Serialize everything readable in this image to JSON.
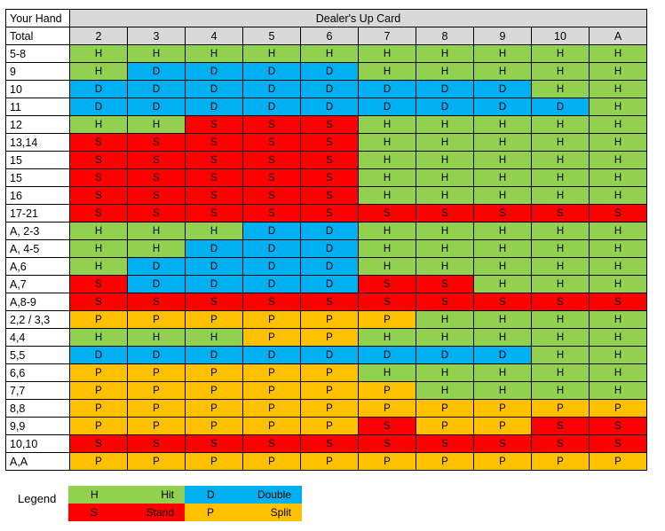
{
  "header": {
    "your_hand": "Your Hand",
    "total": "Total",
    "dealer_up_card": "Dealer's Up Card",
    "columns": [
      "2",
      "3",
      "4",
      "5",
      "6",
      "7",
      "8",
      "9",
      "10",
      "A"
    ]
  },
  "rows": [
    {
      "hand": "5-8",
      "cells": [
        "H",
        "H",
        "H",
        "H",
        "H",
        "H",
        "H",
        "H",
        "H",
        "H"
      ]
    },
    {
      "hand": "9",
      "cells": [
        "H",
        "D",
        "D",
        "D",
        "D",
        "H",
        "H",
        "H",
        "H",
        "H"
      ]
    },
    {
      "hand": "10",
      "cells": [
        "D",
        "D",
        "D",
        "D",
        "D",
        "D",
        "D",
        "D",
        "H",
        "H"
      ]
    },
    {
      "hand": "11",
      "cells": [
        "D",
        "D",
        "D",
        "D",
        "D",
        "D",
        "D",
        "D",
        "D",
        "H"
      ]
    },
    {
      "hand": "12",
      "cells": [
        "H",
        "H",
        "S",
        "S",
        "S",
        "H",
        "H",
        "H",
        "H",
        "H"
      ]
    },
    {
      "hand": "13,14",
      "cells": [
        "S",
        "S",
        "S",
        "S",
        "S",
        "H",
        "H",
        "H",
        "H",
        "H"
      ]
    },
    {
      "hand": "15",
      "cells": [
        "S",
        "S",
        "S",
        "S",
        "S",
        "H",
        "H",
        "H",
        "H",
        "H"
      ]
    },
    {
      "hand": "15",
      "cells": [
        "S",
        "S",
        "S",
        "S",
        "S",
        "H",
        "H",
        "H",
        "H",
        "H"
      ]
    },
    {
      "hand": "16",
      "cells": [
        "S",
        "S",
        "S",
        "S",
        "S",
        "H",
        "H",
        "H",
        "H",
        "H"
      ]
    },
    {
      "hand": "17-21",
      "cells": [
        "S",
        "S",
        "S",
        "S",
        "S",
        "S",
        "S",
        "S",
        "S",
        "S"
      ]
    },
    {
      "hand": "A, 2-3",
      "cells": [
        "H",
        "H",
        "H",
        "D",
        "D",
        "H",
        "H",
        "H",
        "H",
        "H"
      ]
    },
    {
      "hand": "A, 4-5",
      "cells": [
        "H",
        "H",
        "D",
        "D",
        "D",
        "H",
        "H",
        "H",
        "H",
        "H"
      ]
    },
    {
      "hand": "A,6",
      "cells": [
        "H",
        "D",
        "D",
        "D",
        "D",
        "H",
        "H",
        "H",
        "H",
        "H"
      ]
    },
    {
      "hand": "A,7",
      "cells": [
        "S",
        "D",
        "D",
        "D",
        "D",
        "S",
        "S",
        "H",
        "H",
        "H"
      ]
    },
    {
      "hand": "A,8-9",
      "cells": [
        "S",
        "S",
        "S",
        "S",
        "S",
        "S",
        "S",
        "S",
        "S",
        "S"
      ]
    },
    {
      "hand": "2,2 / 3,3",
      "cells": [
        "P",
        "P",
        "P",
        "P",
        "P",
        "P",
        "H",
        "H",
        "H",
        "H"
      ]
    },
    {
      "hand": "4,4",
      "cells": [
        "H",
        "H",
        "H",
        "P",
        "P",
        "H",
        "H",
        "H",
        "H",
        "H"
      ]
    },
    {
      "hand": "5,5",
      "cells": [
        "D",
        "D",
        "D",
        "D",
        "D",
        "D",
        "D",
        "D",
        "H",
        "H"
      ]
    },
    {
      "hand": "6,6",
      "cells": [
        "P",
        "P",
        "P",
        "P",
        "P",
        "H",
        "H",
        "H",
        "H",
        "H"
      ]
    },
    {
      "hand": "7,7",
      "cells": [
        "P",
        "P",
        "P",
        "P",
        "P",
        "P",
        "H",
        "H",
        "H",
        "H"
      ]
    },
    {
      "hand": "8,8",
      "cells": [
        "P",
        "P",
        "P",
        "P",
        "P",
        "P",
        "P",
        "P",
        "P",
        "P"
      ]
    },
    {
      "hand": "9,9",
      "cells": [
        "P",
        "P",
        "P",
        "P",
        "P",
        "S",
        "P",
        "P",
        "S",
        "S"
      ]
    },
    {
      "hand": "10,10",
      "cells": [
        "S",
        "S",
        "S",
        "S",
        "S",
        "S",
        "S",
        "S",
        "S",
        "S"
      ]
    },
    {
      "hand": "A,A",
      "cells": [
        "P",
        "P",
        "P",
        "P",
        "P",
        "P",
        "P",
        "P",
        "P",
        "P"
      ]
    }
  ],
  "legend": {
    "title": "Legend",
    "items": [
      {
        "code": "H",
        "label": "Hit",
        "color": "#92d050"
      },
      {
        "code": "D",
        "label": "Double",
        "color": "#00b0f0"
      },
      {
        "code": "S",
        "label": "Stand",
        "color": "#ff0000"
      },
      {
        "code": "P",
        "label": "Split",
        "color": "#ffc000"
      }
    ]
  }
}
